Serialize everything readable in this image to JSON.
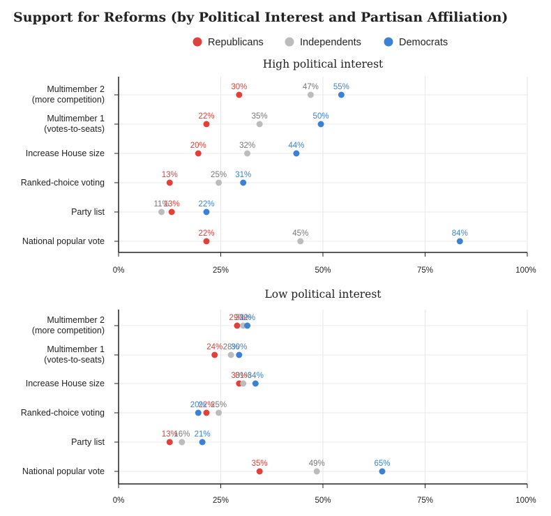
{
  "title": "Support for Reforms (by Political Interest and Partisan Affiliation)",
  "colors": {
    "Republicans": "#e0413a",
    "Independents": "#bcbcbc",
    "Democrats": "#3b82d6",
    "Independents_label": "#777777"
  },
  "chart_data": {
    "type": "scatter",
    "legend": {
      "placement": "top-center",
      "entries": [
        "Republicans",
        "Independents",
        "Democrats"
      ]
    },
    "xlim": [
      0,
      100
    ],
    "x_ticks": [
      "0%",
      "25%",
      "50%",
      "75%",
      "100%"
    ],
    "grid": true,
    "categories": [
      [
        "Multimember 2",
        "(more competition)"
      ],
      [
        "Multimember 1",
        "(votes-to-seats)"
      ],
      [
        "Increase House size"
      ],
      [
        "Ranked-choice voting"
      ],
      [
        "Party list"
      ],
      [
        "National popular vote"
      ]
    ],
    "panels": [
      {
        "title": "High political interest",
        "series": [
          {
            "name": "Republicans",
            "values": [
              29.5,
              21.5,
              19.5,
              12.5,
              13.0,
              21.5
            ],
            "labels": [
              "30%",
              "22%",
              "20%",
              "13%",
              "13%",
              "22%"
            ]
          },
          {
            "name": "Independents",
            "values": [
              47.0,
              34.5,
              31.5,
              24.5,
              10.5,
              44.5
            ],
            "labels": [
              "47%",
              "35%",
              "32%",
              "25%",
              "11%",
              "45%"
            ]
          },
          {
            "name": "Democrats",
            "values": [
              54.5,
              49.5,
              43.5,
              30.5,
              21.5,
              83.5
            ],
            "labels": [
              "55%",
              "50%",
              "44%",
              "31%",
              "22%",
              "84%"
            ]
          }
        ]
      },
      {
        "title": "Low political interest",
        "series": [
          {
            "name": "Republicans",
            "values": [
              29.0,
              23.5,
              29.5,
              21.5,
              12.5,
              34.5
            ],
            "labels": [
              "29%",
              "24%",
              "30%",
              "22%",
              "13%",
              "35%"
            ]
          },
          {
            "name": "Independents",
            "values": [
              30.5,
              27.5,
              30.5,
              24.5,
              15.5,
              48.5
            ],
            "labels": [
              "31%",
              "28%",
              "31%",
              "25%",
              "16%",
              "49%"
            ]
          },
          {
            "name": "Democrats",
            "values": [
              31.5,
              29.5,
              33.5,
              19.5,
              20.5,
              64.5
            ],
            "labels": [
              "32%",
              "30%",
              "34%",
              "20%",
              "21%",
              "65%"
            ]
          }
        ]
      }
    ]
  }
}
